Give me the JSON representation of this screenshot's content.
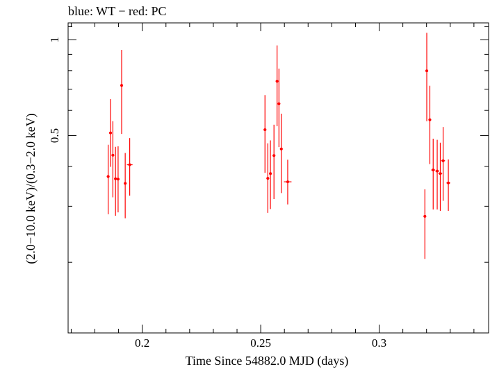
{
  "chart_data": {
    "type": "scatter",
    "title": "blue: WT − red: PC",
    "xlabel": "Time Since 54882.0 MJD (days)",
    "ylabel": "(2.0−10.0 keV)/(0.3−2.0 keV)",
    "xlim": [
      0.1687,
      0.3462
    ],
    "ylim": [
      0.12,
      1.13
    ],
    "log_y": true,
    "x_ticks": [
      0.2,
      0.25,
      0.3
    ],
    "x_tick_labels": [
      "0.2",
      "0.25",
      "0.3"
    ],
    "y_ticks": [
      0.5,
      1
    ],
    "y_tick_labels": [
      "0.5",
      "1"
    ],
    "grid": false,
    "series": [
      {
        "color": "#ff0000",
        "points": [
          {
            "x": 0.1856,
            "y": 0.372,
            "xerr": 0.0006,
            "ylo": 0.283,
            "yhi": 0.468
          },
          {
            "x": 0.1866,
            "y": 0.51,
            "xerr": 0.0006,
            "ylo": 0.399,
            "yhi": 0.651
          },
          {
            "x": 0.1876,
            "y": 0.434,
            "xerr": 0.0006,
            "ylo": 0.32,
            "yhi": 0.555
          },
          {
            "x": 0.1887,
            "y": 0.366,
            "xerr": 0.0006,
            "ylo": 0.28,
            "yhi": 0.461
          },
          {
            "x": 0.1898,
            "y": 0.365,
            "xerr": 0.0006,
            "ylo": 0.287,
            "yhi": 0.463
          },
          {
            "x": 0.1913,
            "y": 0.719,
            "xerr": 0.0006,
            "ylo": 0.506,
            "yhi": 0.929
          },
          {
            "x": 0.1928,
            "y": 0.354,
            "xerr": 0.0006,
            "ylo": 0.275,
            "yhi": 0.441
          },
          {
            "x": 0.1947,
            "y": 0.405,
            "xerr": 0.0012,
            "ylo": 0.324,
            "yhi": 0.491
          },
          {
            "x": 0.2518,
            "y": 0.522,
            "xerr": 0.0006,
            "ylo": 0.382,
            "yhi": 0.67
          },
          {
            "x": 0.253,
            "y": 0.367,
            "xerr": 0.0006,
            "ylo": 0.286,
            "yhi": 0.473
          },
          {
            "x": 0.2541,
            "y": 0.38,
            "xerr": 0.0006,
            "ylo": 0.294,
            "yhi": 0.483
          },
          {
            "x": 0.2556,
            "y": 0.433,
            "xerr": 0.0006,
            "ylo": 0.316,
            "yhi": 0.541
          },
          {
            "x": 0.2569,
            "y": 0.741,
            "xerr": 0.0006,
            "ylo": 0.535,
            "yhi": 0.96
          },
          {
            "x": 0.2577,
            "y": 0.63,
            "xerr": 0.0006,
            "ylo": 0.46,
            "yhi": 0.812
          },
          {
            "x": 0.2587,
            "y": 0.454,
            "xerr": 0.0006,
            "ylo": 0.33,
            "yhi": 0.586
          },
          {
            "x": 0.2614,
            "y": 0.358,
            "xerr": 0.0016,
            "ylo": 0.304,
            "yhi": 0.42
          },
          {
            "x": 0.3193,
            "y": 0.279,
            "xerr": 0.0006,
            "ylo": 0.205,
            "yhi": 0.339
          },
          {
            "x": 0.3201,
            "y": 0.799,
            "xerr": 0.0006,
            "ylo": 0.555,
            "yhi": 1.052
          },
          {
            "x": 0.3214,
            "y": 0.561,
            "xerr": 0.0006,
            "ylo": 0.407,
            "yhi": 0.717
          },
          {
            "x": 0.3228,
            "y": 0.39,
            "xerr": 0.0008,
            "ylo": 0.293,
            "yhi": 0.489
          },
          {
            "x": 0.3245,
            "y": 0.387,
            "xerr": 0.0008,
            "ylo": 0.293,
            "yhi": 0.485
          },
          {
            "x": 0.3258,
            "y": 0.38,
            "xerr": 0.0008,
            "ylo": 0.29,
            "yhi": 0.475
          },
          {
            "x": 0.327,
            "y": 0.417,
            "xerr": 0.0008,
            "ylo": 0.312,
            "yhi": 0.532
          },
          {
            "x": 0.3292,
            "y": 0.355,
            "xerr": 0.0008,
            "ylo": 0.29,
            "yhi": 0.421
          }
        ]
      }
    ]
  }
}
